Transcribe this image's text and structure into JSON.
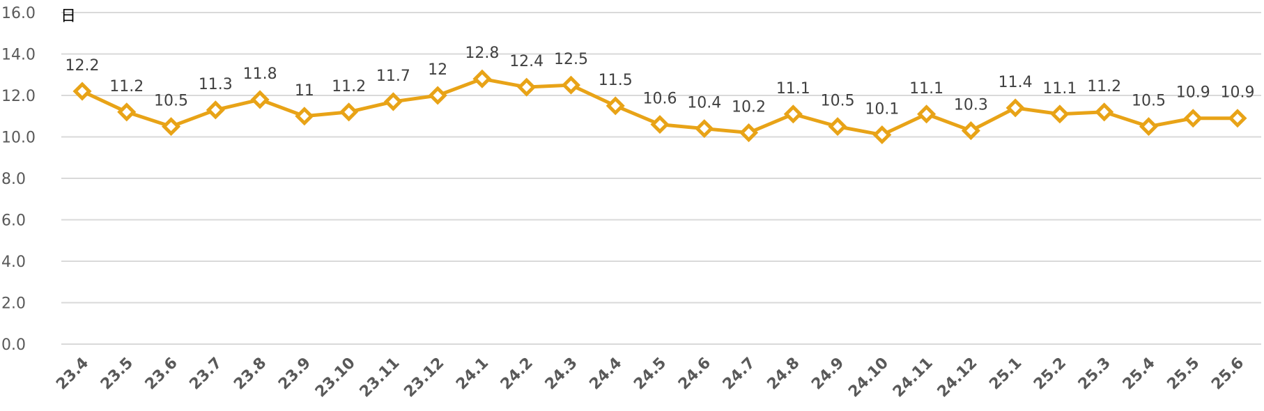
{
  "chart_data": {
    "type": "line",
    "title": "",
    "xlabel": "",
    "ylabel": "日",
    "ylim": [
      0,
      16
    ],
    "yticks": [
      "0.0",
      "2.0",
      "4.0",
      "6.0",
      "8.0",
      "10.0",
      "12.0",
      "14.0",
      "16.0"
    ],
    "grid": true,
    "categories": [
      "23.4",
      "23.5",
      "23.6",
      "23.7",
      "23.8",
      "23.9",
      "23.10",
      "23.11",
      "23.12",
      "24.1",
      "24.2",
      "24.3",
      "24.4",
      "24.5",
      "24.6",
      "24.7",
      "24.8",
      "24.9",
      "24.10",
      "24.11",
      "24.12",
      "25.1",
      "25.2",
      "25.3",
      "25.4",
      "25.5",
      "25.6"
    ],
    "values": [
      12.2,
      11.2,
      10.5,
      11.3,
      11.8,
      11,
      11.2,
      11.7,
      12,
      12.8,
      12.4,
      12.5,
      11.5,
      10.6,
      10.4,
      10.2,
      11.1,
      10.5,
      10.1,
      11.1,
      10.3,
      11.4,
      11.1,
      11.2,
      10.5,
      10.9,
      10.9
    ],
    "value_labels": [
      "12.2",
      "11.2",
      "10.5",
      "11.3",
      "11.8",
      "11",
      "11.2",
      "11.7",
      "12",
      "12.8",
      "12.4",
      "12.5",
      "11.5",
      "10.6",
      "10.4",
      "10.2",
      "11.1",
      "10.5",
      "10.1",
      "11.1",
      "10.3",
      "11.4",
      "11.1",
      "11.2",
      "10.5",
      "10.9",
      "10.9"
    ],
    "line_color": "#E8A317",
    "marker": "diamond-open",
    "grid_color": "#D9D9D9"
  }
}
